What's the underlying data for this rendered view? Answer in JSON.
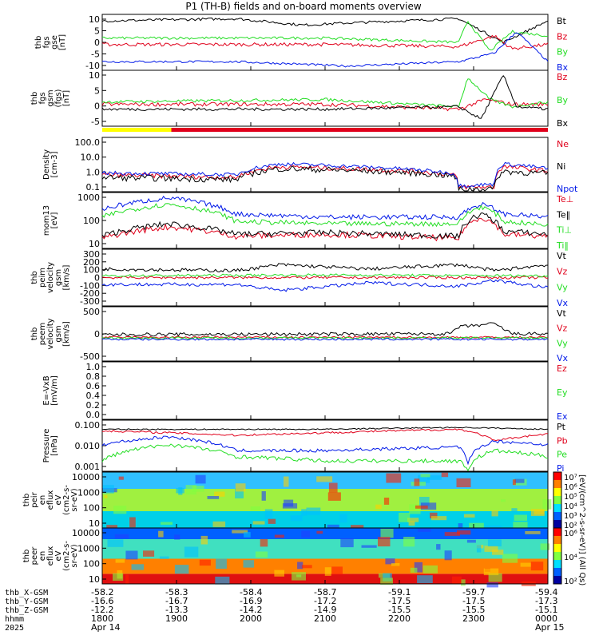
{
  "title": "P1 (TH-B) fields and on-board moments overview",
  "colors": {
    "black": "#000000",
    "red": "#e0001b",
    "green": "#22dd22",
    "blue": "#0018e8",
    "yellow": "#ffff00"
  },
  "chart_data": {
    "type": "line",
    "panels": [
      {
        "id": "fgs-gse",
        "ylabel": [
          "thb",
          "fgs",
          "gse",
          "[nT]"
        ],
        "ticks": [
          "10",
          "5",
          "0",
          "-5",
          "-10"
        ],
        "ylim": [
          -12,
          14
        ],
        "legend": [
          {
            "name": "Bt",
            "color": "black"
          },
          {
            "name": "Bz",
            "color": "red"
          },
          {
            "name": "By",
            "color": "green"
          },
          {
            "name": "Bx",
            "color": "blue"
          }
        ]
      },
      {
        "id": "fgs-gsm",
        "ylabel": [
          "thb",
          "fgs",
          "gsm",
          "(fgs)",
          "[nT]"
        ],
        "ticks": [
          "10",
          "5",
          "0",
          "-5"
        ],
        "ylim": [
          -8,
          15
        ],
        "legend": [
          {
            "name": "Bz",
            "color": "red"
          },
          {
            "name": "By",
            "color": "green"
          },
          {
            "name": "Bx",
            "color": "black"
          }
        ],
        "mode_bar": [
          {
            "from": "1800",
            "to": "1830",
            "color": "yellow"
          },
          {
            "from": "1830",
            "to": "0000",
            "color": "red"
          }
        ]
      },
      {
        "id": "density",
        "ylabel": [
          "Density",
          "[cm-3]"
        ],
        "ticks": [
          "100.0",
          "10.0",
          "1.0",
          "0.1"
        ],
        "ylim": [
          0.05,
          150
        ],
        "scale": "log",
        "legend": [
          {
            "name": "Ne",
            "color": "red"
          },
          {
            "name": "Ni",
            "color": "black"
          },
          {
            "name": "Npot",
            "color": "blue"
          }
        ]
      },
      {
        "id": "temperature",
        "ylabel": [
          "mom13",
          "[eV]"
        ],
        "ticks": [
          "1000",
          "100",
          "10"
        ],
        "ylim": [
          8,
          1500
        ],
        "scale": "log",
        "legend": [
          {
            "name": "Te⊥",
            "color": "red"
          },
          {
            "name": "Te‖",
            "color": "black"
          },
          {
            "name": "Ti⊥",
            "color": "green"
          },
          {
            "name": "Ti‖",
            "color": "green"
          }
        ]
      },
      {
        "id": "peim-velocity",
        "ylabel": [
          "thb",
          "peim",
          "velocity",
          "gsm",
          "[km/s]"
        ],
        "ticks": [
          "300",
          "200",
          "100",
          "0",
          "-100",
          "-200",
          "-300"
        ],
        "ylim": [
          -330,
          330
        ],
        "legend": [
          {
            "name": "Vt",
            "color": "black"
          },
          {
            "name": "Vz",
            "color": "red"
          },
          {
            "name": "Vy",
            "color": "green"
          },
          {
            "name": "Vx",
            "color": "blue"
          }
        ]
      },
      {
        "id": "peem-velocity",
        "ylabel": [
          "thb",
          "peem",
          "velocity",
          "gsm",
          "[km/s]"
        ],
        "ticks": [
          "500",
          "0",
          "-500"
        ],
        "ylim": [
          -700,
          900
        ],
        "legend": [
          {
            "name": "Vt",
            "color": "black"
          },
          {
            "name": "Vz",
            "color": "red"
          },
          {
            "name": "Vy",
            "color": "green"
          },
          {
            "name": "Vx",
            "color": "blue"
          }
        ]
      },
      {
        "id": "efield",
        "ylabel": [
          "E=-VxB",
          "[mV/m]"
        ],
        "ticks": [
          "1.0",
          "0.8",
          "0.6",
          "0.4",
          "0.2",
          "0.0"
        ],
        "ylim": [
          -0.1,
          1.0
        ],
        "legend": [
          {
            "name": "Ez",
            "color": "red"
          },
          {
            "name": "Ey",
            "color": "green"
          },
          {
            "name": "Ex",
            "color": "blue"
          }
        ]
      },
      {
        "id": "pressure",
        "ylabel": [
          "Pressure",
          "[nPa]"
        ],
        "ticks": [
          "0.100",
          "0.010",
          "0.001"
        ],
        "ylim": [
          0.0009,
          0.35
        ],
        "scale": "log",
        "legend": [
          {
            "name": "Pt",
            "color": "black"
          },
          {
            "name": "Pb",
            "color": "red"
          },
          {
            "name": "Pe",
            "color": "green"
          },
          {
            "name": "Pi",
            "color": "blue"
          }
        ]
      },
      {
        "id": "peir-spec",
        "ylabel": [
          "thb",
          "peir",
          "en",
          "eflux",
          "eV",
          "(cm2-s-",
          "sr-eV)"
        ],
        "ticks": [
          "10000",
          "1000",
          "100",
          "10"
        ],
        "ylim": [
          5,
          20000
        ],
        "scale": "log"
      },
      {
        "id": "peer-spec",
        "ylabel": [
          "thb",
          "peer",
          "en",
          "eflux",
          "eV",
          "(cm2-s-",
          "sr-eV)"
        ],
        "ticks": [
          "10000",
          "1000",
          "100",
          "10"
        ],
        "ylim": [
          5,
          20000
        ],
        "scale": "log"
      }
    ],
    "colorbars": [
      {
        "ticks": [
          "10⁷",
          "10⁶",
          "10⁵",
          "10⁴",
          "10³",
          "10²"
        ],
        "range": [
          100,
          10000000
        ]
      },
      {
        "ticks": [
          "10⁶",
          "10⁴",
          "10²"
        ],
        "range": [
          100,
          1000000
        ]
      }
    ],
    "colorbar_label": "[eV/(cm^2-s-sr-eV)] (All Qs)",
    "x_axis": {
      "rows": [
        {
          "label": "thb_X-GSM",
          "values": [
            "-58.2",
            "-58.3",
            "-58.4",
            "-58.7",
            "-59.1",
            "-59.7",
            "-59.4"
          ]
        },
        {
          "label": "thb_Y-GSM",
          "values": [
            "-16.6",
            "-16.7",
            "-16.9",
            "-17.2",
            "-17.5",
            "-17.5",
            "-17.3"
          ]
        },
        {
          "label": "thb_Z-GSM",
          "values": [
            "-12.2",
            "-13.3",
            "-14.2",
            "-14.9",
            "-15.5",
            "-15.5",
            "-15.1"
          ]
        },
        {
          "label": "hhmm",
          "values": [
            "1800",
            "1900",
            "2000",
            "2100",
            "2200",
            "2300",
            "0000"
          ]
        },
        {
          "label": "2025",
          "values": [
            "Apr 14",
            "",
            "",
            "",
            "",
            "",
            "Apr 15"
          ]
        }
      ]
    }
  }
}
